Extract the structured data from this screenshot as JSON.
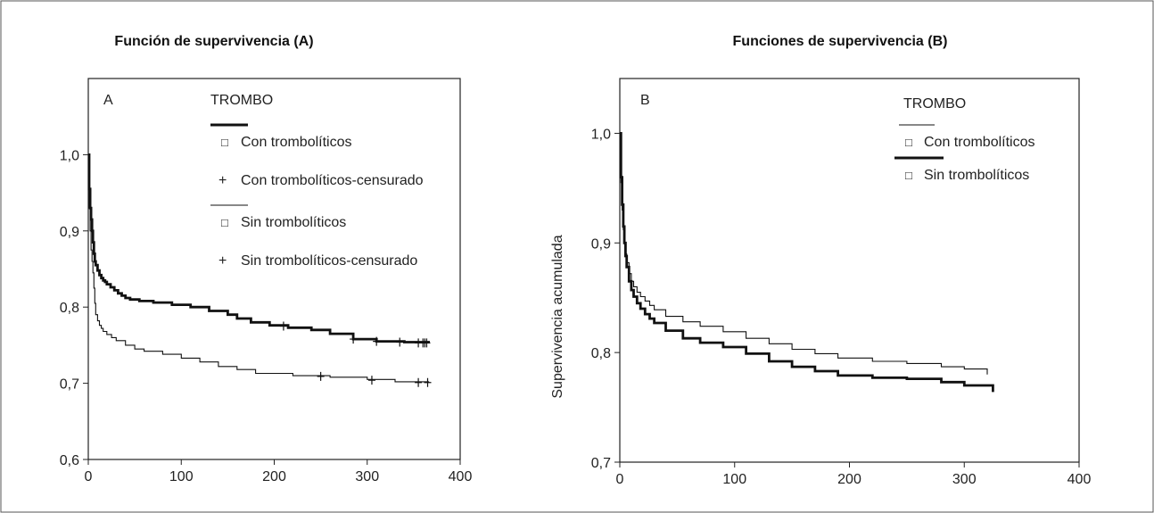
{
  "chart_data": [
    {
      "type": "line",
      "title": "Función de supervivencia (A)",
      "panel_label": "A",
      "xlabel": "",
      "ylabel": "",
      "xlim": [
        0,
        400
      ],
      "ylim": [
        0.6,
        1.1
      ],
      "x_ticks": [
        0,
        100,
        200,
        300,
        400
      ],
      "x_tick_labels": [
        "0",
        "100",
        "200",
        "300",
        "400"
      ],
      "y_ticks": [
        0.6,
        0.7,
        0.8,
        0.9,
        1.0
      ],
      "y_tick_labels": [
        "0,6",
        "0,7",
        "0,8",
        "0,9",
        "1,0"
      ],
      "grid": false,
      "legend": {
        "title": "TROMBO",
        "position": "top-right",
        "entries": [
          {
            "label": "Con trombolíticos",
            "marker": "□",
            "line": "thick"
          },
          {
            "label": "Con trombolíticos-censurado",
            "marker": "+"
          },
          {
            "label": "Sin trombolíticos",
            "marker": "□",
            "line": "thin"
          },
          {
            "label": "Sin trombolíticos-censurado",
            "marker": "+"
          }
        ]
      },
      "series": [
        {
          "name": "Con trombolíticos",
          "line": "thick",
          "x": [
            0,
            1,
            2,
            3,
            4,
            5,
            6,
            7,
            8,
            10,
            12,
            14,
            16,
            18,
            20,
            24,
            28,
            32,
            36,
            40,
            45,
            55,
            70,
            90,
            110,
            130,
            150,
            160,
            175,
            195,
            215,
            240,
            260,
            285,
            310,
            340,
            366
          ],
          "y": [
            1.0,
            0.955,
            0.93,
            0.915,
            0.9,
            0.885,
            0.87,
            0.86,
            0.855,
            0.848,
            0.842,
            0.838,
            0.835,
            0.833,
            0.83,
            0.826,
            0.822,
            0.818,
            0.815,
            0.812,
            0.81,
            0.808,
            0.806,
            0.803,
            0.8,
            0.795,
            0.79,
            0.785,
            0.78,
            0.776,
            0.773,
            0.77,
            0.765,
            0.758,
            0.755,
            0.754,
            0.753
          ],
          "censored_x": [
            210,
            285,
            310,
            335,
            355,
            360,
            362,
            364
          ],
          "censored_y": [
            0.775,
            0.758,
            0.755,
            0.754,
            0.753,
            0.753,
            0.753,
            0.753
          ]
        },
        {
          "name": "Sin trombolíticos",
          "line": "thin",
          "x": [
            0,
            1,
            2,
            3,
            4,
            5,
            6,
            7,
            8,
            10,
            12,
            14,
            16,
            20,
            25,
            30,
            40,
            50,
            60,
            80,
            100,
            120,
            140,
            160,
            180,
            220,
            260,
            300,
            330,
            366
          ],
          "y": [
            1.0,
            0.93,
            0.9,
            0.875,
            0.86,
            0.845,
            0.825,
            0.805,
            0.79,
            0.782,
            0.776,
            0.772,
            0.768,
            0.764,
            0.76,
            0.756,
            0.75,
            0.745,
            0.742,
            0.738,
            0.733,
            0.728,
            0.722,
            0.718,
            0.713,
            0.71,
            0.708,
            0.705,
            0.702,
            0.701
          ],
          "censored_x": [
            250,
            305,
            355,
            365
          ],
          "censored_y": [
            0.709,
            0.704,
            0.701,
            0.701
          ]
        }
      ]
    },
    {
      "type": "line",
      "title": "Funciones de supervivencia (B)",
      "panel_label": "B",
      "xlabel": "",
      "ylabel": "Supervivencia acumulada",
      "xlim": [
        0,
        400
      ],
      "ylim": [
        0.7,
        1.05
      ],
      "x_ticks": [
        0,
        100,
        200,
        300,
        400
      ],
      "x_tick_labels": [
        "0",
        "100",
        "200",
        "300",
        "400"
      ],
      "y_ticks": [
        0.7,
        0.8,
        0.9,
        1.0
      ],
      "y_tick_labels": [
        "0,7",
        "0,8",
        "0,9",
        "1,0"
      ],
      "grid": false,
      "legend": {
        "title": "TROMBO",
        "position": "top-right",
        "entries": [
          {
            "label": "Con trombolíticos",
            "marker": "□",
            "line": "thin"
          },
          {
            "label": "Sin trombolíticos",
            "marker": "□",
            "line": "thick"
          }
        ]
      },
      "series": [
        {
          "name": "Con trombolíticos",
          "line": "thin",
          "x": [
            0,
            1,
            2,
            3,
            4,
            5,
            6,
            8,
            10,
            12,
            15,
            18,
            22,
            26,
            30,
            40,
            55,
            70,
            90,
            110,
            130,
            150,
            170,
            190,
            220,
            250,
            280,
            300,
            320
          ],
          "y": [
            1.0,
            0.955,
            0.93,
            0.912,
            0.9,
            0.89,
            0.882,
            0.872,
            0.865,
            0.86,
            0.855,
            0.851,
            0.847,
            0.843,
            0.839,
            0.833,
            0.828,
            0.824,
            0.819,
            0.813,
            0.808,
            0.803,
            0.799,
            0.795,
            0.792,
            0.79,
            0.787,
            0.785,
            0.78
          ]
        },
        {
          "name": "Sin trombolíticos",
          "line": "thick",
          "x": [
            0,
            1,
            2,
            3,
            4,
            5,
            6,
            8,
            10,
            12,
            15,
            18,
            22,
            26,
            30,
            40,
            55,
            70,
            90,
            110,
            130,
            150,
            170,
            190,
            220,
            250,
            280,
            300,
            325
          ],
          "y": [
            1.0,
            0.96,
            0.935,
            0.915,
            0.9,
            0.888,
            0.878,
            0.865,
            0.857,
            0.851,
            0.845,
            0.84,
            0.835,
            0.831,
            0.827,
            0.82,
            0.813,
            0.809,
            0.805,
            0.799,
            0.792,
            0.787,
            0.783,
            0.779,
            0.777,
            0.776,
            0.773,
            0.77,
            0.764
          ]
        }
      ]
    }
  ]
}
